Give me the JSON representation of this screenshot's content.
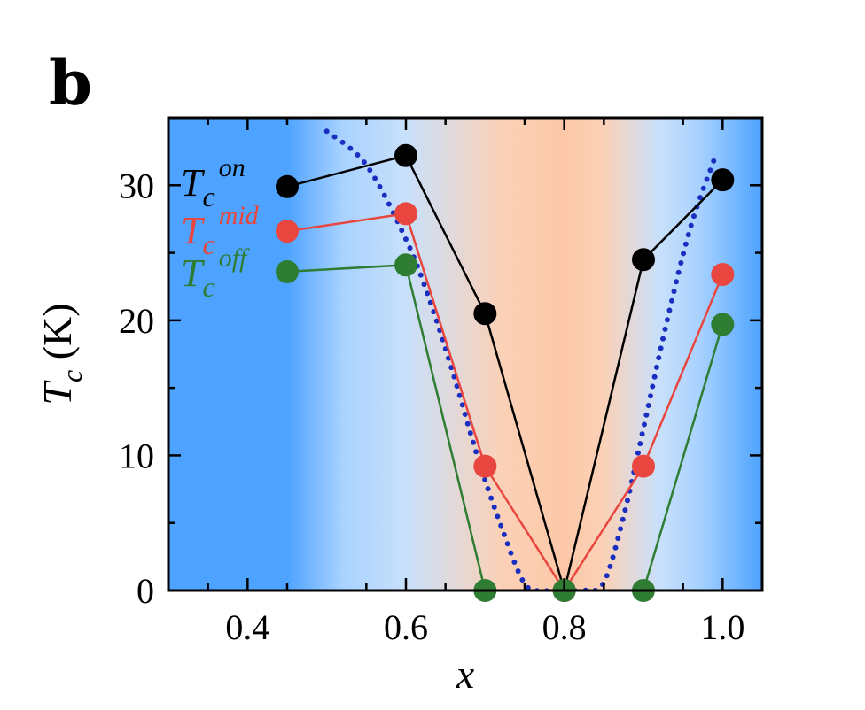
{
  "panel_label": "b",
  "chart_data": {
    "type": "line",
    "xlabel": "x",
    "ylabel": {
      "symbol": "T",
      "subscript": "c",
      "unit": "(K)"
    },
    "xlim": [
      0.3,
      1.05
    ],
    "ylim": [
      0,
      35
    ],
    "xticks": [
      0.4,
      0.6,
      0.8,
      1.0
    ],
    "xtick_labels": [
      "0.4",
      "0.6",
      "0.8",
      "1.0"
    ],
    "yticks": [
      0,
      10,
      20,
      30
    ],
    "ytick_labels": [
      "0",
      "10",
      "20",
      "30"
    ],
    "series": [
      {
        "name": "T_c^on",
        "label_base": "T",
        "label_sub": "c",
        "label_sup": "on",
        "color": "#000000",
        "x": [
          0.45,
          0.6,
          0.7,
          0.8,
          0.9,
          1.0
        ],
        "y": [
          29.9,
          32.2,
          20.5,
          0,
          24.5,
          30.4
        ]
      },
      {
        "name": "T_c^mid",
        "label_base": "T",
        "label_sub": "c",
        "label_sup": "mid",
        "color": "#e8463f",
        "x": [
          0.45,
          0.6,
          0.7,
          0.8,
          0.9,
          1.0
        ],
        "y": [
          26.6,
          27.9,
          9.2,
          0,
          9.2,
          23.4
        ]
      },
      {
        "name": "T_c^off",
        "label_base": "T",
        "label_sub": "c",
        "label_sup": "off",
        "color": "#2e7d32",
        "x": [
          0.45,
          0.6,
          0.7,
          0.8,
          0.9,
          1.0
        ],
        "y": [
          23.6,
          24.1,
          0,
          0,
          0,
          19.7
        ]
      }
    ],
    "guide_curve": {
      "style": "dotted",
      "color": "#1a2fbf",
      "x": [
        0.5,
        0.55,
        0.6,
        0.63,
        0.66,
        0.69,
        0.72,
        0.75,
        0.775,
        0.8,
        0.825,
        0.85,
        0.875,
        0.9,
        0.93,
        0.96,
        0.99
      ],
      "y": [
        34,
        31.5,
        26,
        21.5,
        16,
        10,
        4.8,
        0.5,
        0,
        0,
        0,
        0.6,
        5.5,
        12,
        20,
        27,
        32
      ]
    },
    "background_gradient": {
      "stops": [
        {
          "x": 0.3,
          "color": "#4da3ff"
        },
        {
          "x": 0.45,
          "color": "#4da3ff"
        },
        {
          "x": 0.52,
          "color": "#a9d2ff"
        },
        {
          "x": 0.6,
          "color": "#c8e0fb"
        },
        {
          "x": 0.72,
          "color": "#fbd1b7"
        },
        {
          "x": 0.8,
          "color": "#fdc8a8"
        },
        {
          "x": 0.85,
          "color": "#fbd1b7"
        },
        {
          "x": 0.92,
          "color": "#c8e0fb"
        },
        {
          "x": 0.97,
          "color": "#a9d2ff"
        },
        {
          "x": 1.05,
          "color": "#4da3ff"
        }
      ]
    },
    "grid": false,
    "legend_placement": "top-left, inside plot"
  }
}
